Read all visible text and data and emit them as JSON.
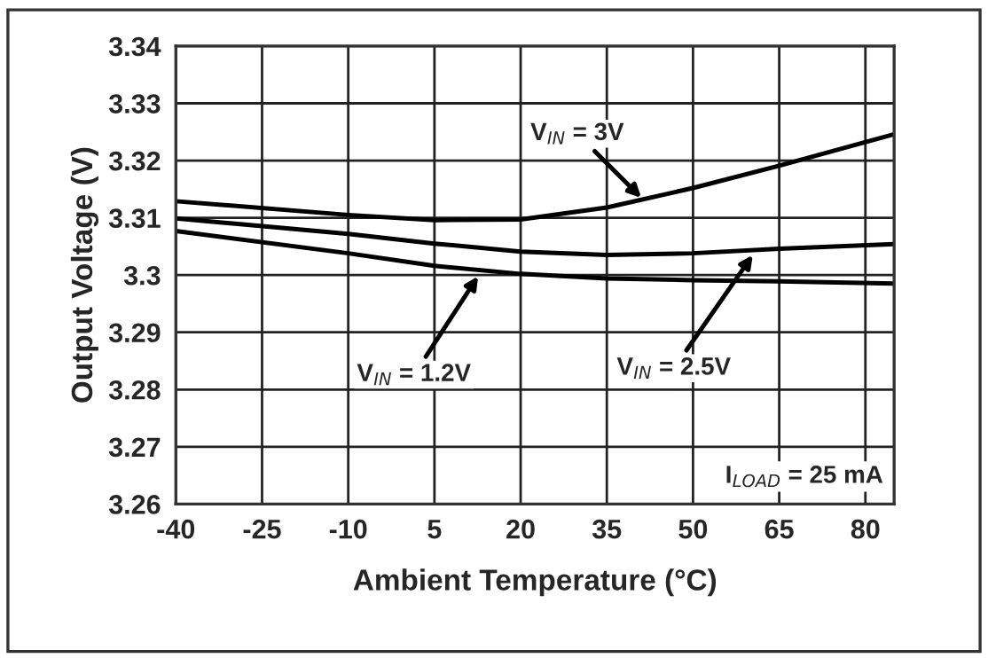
{
  "chart_data": {
    "type": "line",
    "xlabel": "Ambient Temperature (°C)",
    "ylabel": "Output Voltage (V)",
    "x": [
      -40,
      -10,
      5,
      20,
      35,
      50,
      65,
      85
    ],
    "series": [
      {
        "color": "#000000",
        "values": [
          3.3129,
          3.3105,
          3.3096,
          3.3097,
          3.3118,
          3.3152,
          3.3191,
          3.3246
        ]
      },
      {
        "color": "#000000",
        "values": [
          3.3099,
          3.3072,
          3.3055,
          3.3041,
          3.3035,
          3.3038,
          3.3046,
          3.3054
        ]
      },
      {
        "color": "#000000",
        "values": [
          3.3077,
          3.3038,
          3.3016,
          3.3002,
          3.2994,
          3.2991,
          3.2989,
          3.2985
        ]
      }
    ],
    "xlim": [
      -40,
      85
    ],
    "xticks": [
      -40,
      -25,
      -10,
      5,
      20,
      35,
      50,
      65,
      80
    ],
    "ylim": [
      3.26,
      3.34
    ],
    "yticks": [
      3.26,
      3.27,
      3.28,
      3.29,
      3.3,
      3.31,
      3.32,
      3.33,
      3.34
    ],
    "grid": true,
    "marker": "none",
    "line_style": "solid",
    "annotations": [
      {
        "text": "V$_{IN}$ = 3V",
        "x": 41,
        "y": 3.3135
      },
      {
        "text": "V$_{IN}$ = 1.2V",
        "x": 12.6,
        "y": 3.2998
      },
      {
        "text": "V$_{IN}$ = 2.5V",
        "x": 60.4,
        "y": 3.3035
      },
      "I$_{LOAD}$ = 25 mA"
    ]
  }
}
